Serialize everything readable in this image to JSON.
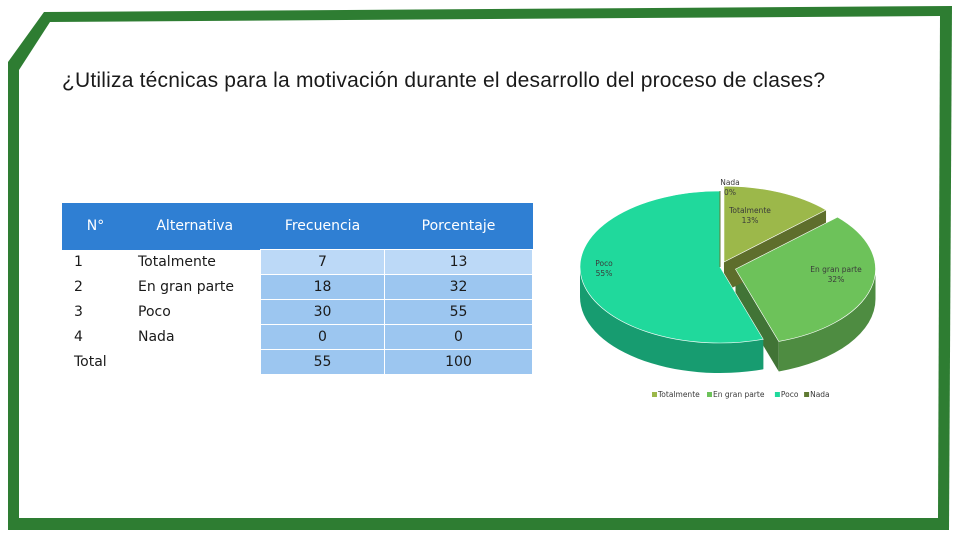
{
  "slide": {
    "title": "¿Utiliza técnicas para la motivación durante el desarrollo  del proceso de clases?"
  },
  "table": {
    "headers": [
      "N°",
      "Alternativa",
      "Frecuencia",
      "Porcentaje"
    ],
    "rows": [
      {
        "n": "1",
        "alt": "Totalmente",
        "freq": "7",
        "pct": "13"
      },
      {
        "n": "2",
        "alt": "En gran parte",
        "freq": "18",
        "pct": "32"
      },
      {
        "n": "3",
        "alt": "Poco",
        "freq": "30",
        "pct": "55"
      },
      {
        "n": "4",
        "alt": "Nada",
        "freq": "0",
        "pct": "0"
      },
      {
        "n": "Total",
        "alt": "",
        "freq": "55",
        "pct": "100"
      }
    ]
  },
  "chart_data": {
    "type": "pie",
    "categories": [
      "Totalmente",
      "En gran parte",
      "Poco",
      "Nada"
    ],
    "values": [
      13,
      32,
      55,
      0
    ],
    "data_labels": [
      {
        "name": "Totalmente",
        "value": "13%"
      },
      {
        "name": "En gran parte",
        "value": "32%"
      },
      {
        "name": "Poco",
        "value": "55%"
      },
      {
        "name": "Nada",
        "value": "0%"
      }
    ],
    "colors": [
      "#9cb84a",
      "#6dc25a",
      "#20d99c",
      "#5f7a32"
    ],
    "legend_position": "bottom",
    "style": "3d-exploded"
  }
}
